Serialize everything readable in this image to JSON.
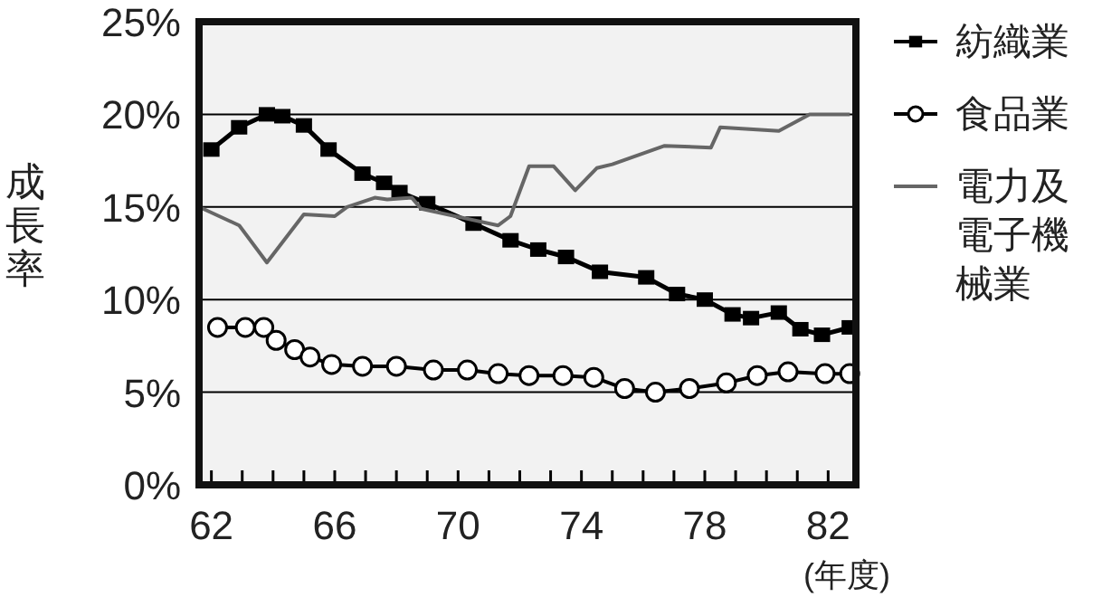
{
  "chart_data": {
    "type": "line",
    "ylabel": "成長率",
    "xlabel": "(年度)",
    "xlim": [
      61.6,
      82.9
    ],
    "ylim": [
      0,
      25
    ],
    "xticks": [
      62,
      {
        "value": 63,
        "label": null
      },
      {
        "value": 64,
        "label": null
      },
      {
        "value": 65,
        "label": null
      },
      66,
      {
        "value": 67,
        "label": null
      },
      {
        "value": 68,
        "label": null
      },
      {
        "value": 69,
        "label": null
      },
      70,
      {
        "value": 71,
        "label": null
      },
      {
        "value": 72,
        "label": null
      },
      {
        "value": 73,
        "label": null
      },
      74,
      {
        "value": 75,
        "label": null
      },
      {
        "value": 76,
        "label": null
      },
      {
        "value": 77,
        "label": null
      },
      78,
      {
        "value": 79,
        "label": null
      },
      {
        "value": 80,
        "label": null
      },
      {
        "value": 81,
        "label": null
      },
      82
    ],
    "yticks": [
      {
        "value": 0,
        "label": "0%"
      },
      {
        "value": 5,
        "label": "5%"
      },
      {
        "value": 10,
        "label": "10%"
      },
      {
        "value": 15,
        "label": "15%"
      },
      {
        "value": 20,
        "label": "20%"
      },
      {
        "value": 25,
        "label": "25%"
      }
    ],
    "grid": "y",
    "legend": "right",
    "series": [
      {
        "name": "紡織業",
        "color": "#000000",
        "marker": "square",
        "x": [
          62,
          62.9,
          63.8,
          64.3,
          65.0,
          65.8,
          66.9,
          67.6,
          68.1,
          69.0,
          70.5,
          71.7,
          72.6,
          73.5,
          74.6,
          76.1,
          77.1,
          78.0,
          78.9,
          79.5,
          80.4,
          81.1,
          81.8,
          82.7
        ],
        "values": [
          18.1,
          19.3,
          20.0,
          19.9,
          19.4,
          18.1,
          16.8,
          16.3,
          15.8,
          15.2,
          14.1,
          13.2,
          12.7,
          12.3,
          11.5,
          11.2,
          10.3,
          10.0,
          9.2,
          9.0,
          9.3,
          8.4,
          8.1,
          8.5
        ]
      },
      {
        "name": "食品業",
        "color": "#000000",
        "marker": "circle",
        "x": [
          62.2,
          63.1,
          63.7,
          64.1,
          64.7,
          65.2,
          65.9,
          66.9,
          68.0,
          69.2,
          70.3,
          71.3,
          72.3,
          73.4,
          74.4,
          75.4,
          76.4,
          77.5,
          78.7,
          79.7,
          80.7,
          81.9,
          82.7
        ],
        "values": [
          8.5,
          8.5,
          8.5,
          7.8,
          7.3,
          6.9,
          6.5,
          6.4,
          6.4,
          6.2,
          6.2,
          6.0,
          5.9,
          5.9,
          5.8,
          5.2,
          5.0,
          5.2,
          5.5,
          5.9,
          6.1,
          6.0,
          6.0
        ]
      },
      {
        "name": "電力及電子機械業",
        "color": "#666666",
        "marker": "none",
        "x": [
          61.6,
          62.9,
          63.8,
          65.0,
          66.0,
          66.4,
          67.3,
          67.7,
          68.5,
          68.8,
          71.3,
          71.7,
          72.3,
          73.1,
          73.8,
          74.5,
          75.0,
          76.7,
          78.2,
          78.5,
          80.4,
          81.4,
          82.7
        ],
        "values": [
          15.0,
          14.0,
          12.0,
          14.6,
          14.5,
          15.0,
          15.5,
          15.4,
          15.5,
          14.9,
          14.0,
          14.5,
          17.2,
          17.2,
          15.9,
          17.1,
          17.3,
          18.3,
          18.2,
          19.3,
          19.1,
          20.0,
          20.0
        ]
      }
    ]
  }
}
